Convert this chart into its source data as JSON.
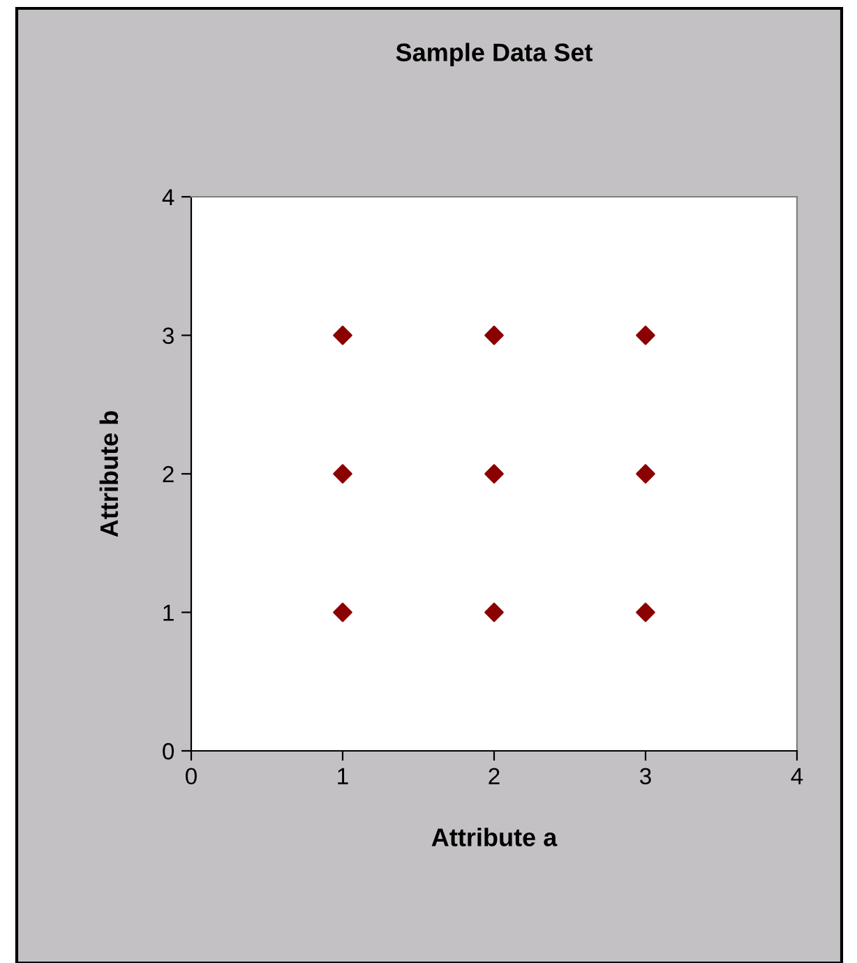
{
  "chart_data": {
    "type": "scatter",
    "title": "Sample Data Set",
    "xlabel": "Attribute a",
    "ylabel": "Attribute b",
    "x": [
      1,
      2,
      3,
      1,
      2,
      3,
      1,
      2,
      3
    ],
    "values": [
      3,
      3,
      3,
      2,
      2,
      2,
      1,
      1,
      1
    ],
    "color": "#8b0000",
    "marker": "diamond",
    "xlim": [
      0,
      4
    ],
    "ylim": [
      0,
      4
    ],
    "xticks": [
      0,
      1,
      2,
      3,
      4
    ],
    "yticks": [
      0,
      1,
      2,
      3,
      4
    ],
    "grid": false,
    "legend": false
  }
}
